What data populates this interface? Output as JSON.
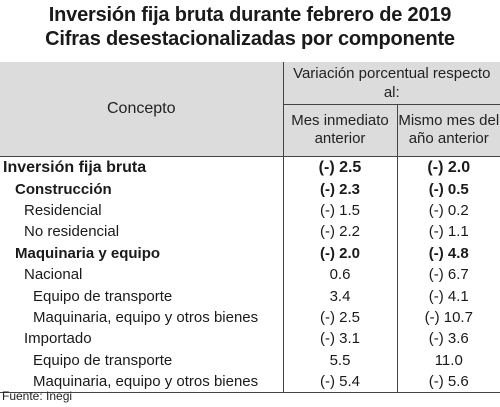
{
  "title_line1": "Inversión fija bruta durante febrero de 2019",
  "title_line2": "Cifras desestacionalizadas por componente",
  "header": {
    "concept": "Concepto",
    "variation": "Variación porcentual respecto al:",
    "col1": "Mes inmediato anterior",
    "col2": "Mismo mes del año anterior"
  },
  "rows": [
    {
      "label": "Inversión fija bruta",
      "level": 0,
      "v1": "(-) 2.5",
      "v2": "(-) 2.0"
    },
    {
      "label": "Construcción",
      "level": 1,
      "v1": "(-) 2.3",
      "v2": "(-) 0.5"
    },
    {
      "label": "Residencial",
      "level": 2,
      "v1": "(-) 1.5",
      "v2": "(-) 0.2"
    },
    {
      "label": "No residencial",
      "level": 2,
      "v1": "(-) 2.2",
      "v2": "(-) 1.1"
    },
    {
      "label": "Maquinaria y equipo",
      "level": 1,
      "v1": "(-) 2.0",
      "v2": "(-) 4.8"
    },
    {
      "label": "Nacional",
      "level": 2,
      "v1": "0.6",
      "v2": "(-) 6.7"
    },
    {
      "label": "Equipo de transporte",
      "level": 3,
      "v1": "3.4",
      "v2": "(-) 4.1"
    },
    {
      "label": "Maquinaria, equipo y otros bienes",
      "level": 3,
      "v1": "(-) 2.5",
      "v2": "(-) 10.7"
    },
    {
      "label": "Importado",
      "level": 2,
      "v1": "(-) 3.1",
      "v2": "(-) 3.6"
    },
    {
      "label": "Equipo de transporte",
      "level": 3,
      "v1": "5.5",
      "v2": "11.0"
    },
    {
      "label": "Maquinaria, equipo y otros bienes",
      "level": 3,
      "v1": "(-) 5.4",
      "v2": "(-) 5.6"
    }
  ],
  "source": "Fuente: Inegi"
}
